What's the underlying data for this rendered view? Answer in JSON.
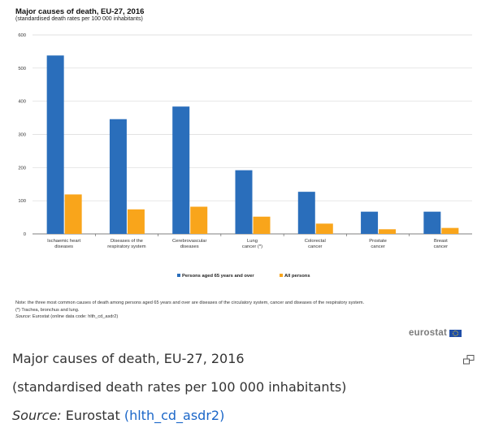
{
  "chart_data": {
    "type": "bar",
    "title": "Major causes of death, EU-27, 2016",
    "subtitle": "(standardised death rates per 100 000 inhabitants)",
    "categories": [
      [
        "Ischaemic heart",
        "diseases"
      ],
      [
        "Diseases of the",
        "respiratory system"
      ],
      [
        "Cerebrovascular",
        "diseases"
      ],
      [
        "Lung",
        "cancer (*)"
      ],
      [
        "Colorectal",
        "cancer"
      ],
      [
        "Prostate",
        "cancer"
      ],
      [
        "Breast",
        "cancer"
      ]
    ],
    "series": [
      {
        "name": "Persons aged 65 years and over",
        "color": "#2a6ebb",
        "values": [
          538,
          346,
          384,
          192,
          127,
          67,
          67
        ]
      },
      {
        "name": "All persons",
        "color": "#f9a51b",
        "values": [
          119,
          74,
          82,
          52,
          31,
          14,
          18
        ]
      }
    ],
    "ylim": [
      0,
      600
    ],
    "yticks": [
      0,
      100,
      200,
      300,
      400,
      500,
      600
    ],
    "grid": true,
    "legend_placement": "bottom"
  },
  "notes": {
    "note": "Note: the three most common causes of death among persons aged 65 years and over are diseases of the circulatory system, cancer and diseases of the respiratory system.",
    "footnote": "(*) Trachea, bronchus and lung.",
    "source_label": "Source:",
    "source_text": "Eurostat (online data code: hlth_cd_asdr2)"
  },
  "logo_text": "eurostat",
  "caption": {
    "title": "Major causes of death, EU-27, 2016",
    "subtitle": "(standardised death rates per 100 000 inhabitants)",
    "source_label": "Source:",
    "source_prefix": "Eurostat",
    "source_link": "(hlth_cd_asdr2)"
  },
  "icons": {
    "expand": "expand-icon"
  }
}
